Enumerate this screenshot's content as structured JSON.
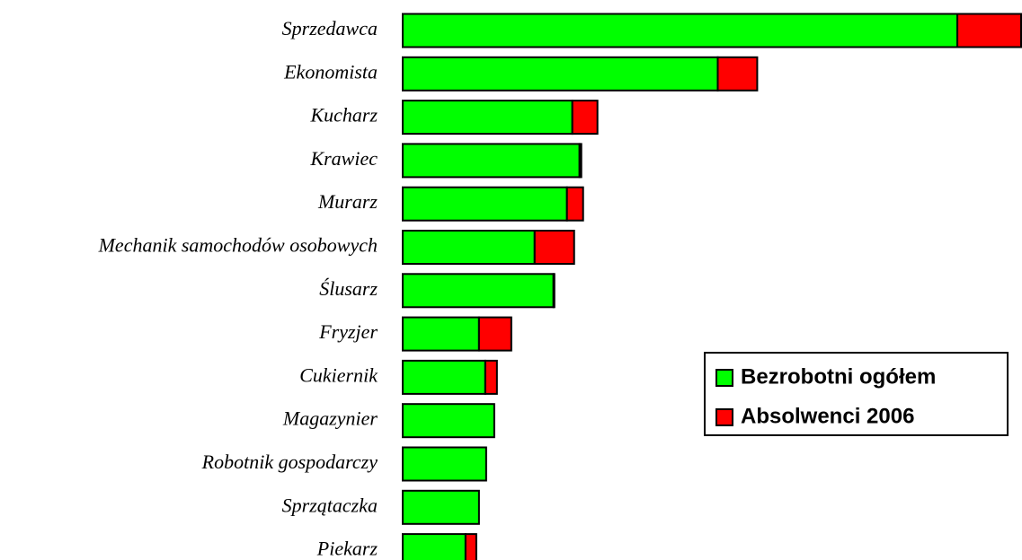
{
  "chart_data": {
    "type": "bar",
    "orientation": "horizontal",
    "stacked": true,
    "categories": [
      "Sprzedawca",
      "Ekonomista",
      "Kucharz",
      "Krawiec",
      "Murarz",
      "Mechanik samochodów osobowych",
      "Ślusarz",
      "Fryzjer",
      "Cukiernik",
      "Magazynier",
      "Robotnik gospodarczy",
      "Sprzątaczka",
      "Piekarz"
    ],
    "series": [
      {
        "name": "Bezrobotni ogółem",
        "color": "#00ff00",
        "values": [
          618,
          351,
          189,
          197,
          183,
          147,
          168,
          85,
          92,
          102,
          93,
          85,
          70
        ]
      },
      {
        "name": "Absolwenci 2006",
        "color": "#ff0000",
        "values": [
          71,
          44,
          28,
          2,
          18,
          44,
          1,
          36,
          13,
          0,
          0,
          0,
          12
        ]
      }
    ],
    "xlim": [
      0,
      689
    ]
  }
}
